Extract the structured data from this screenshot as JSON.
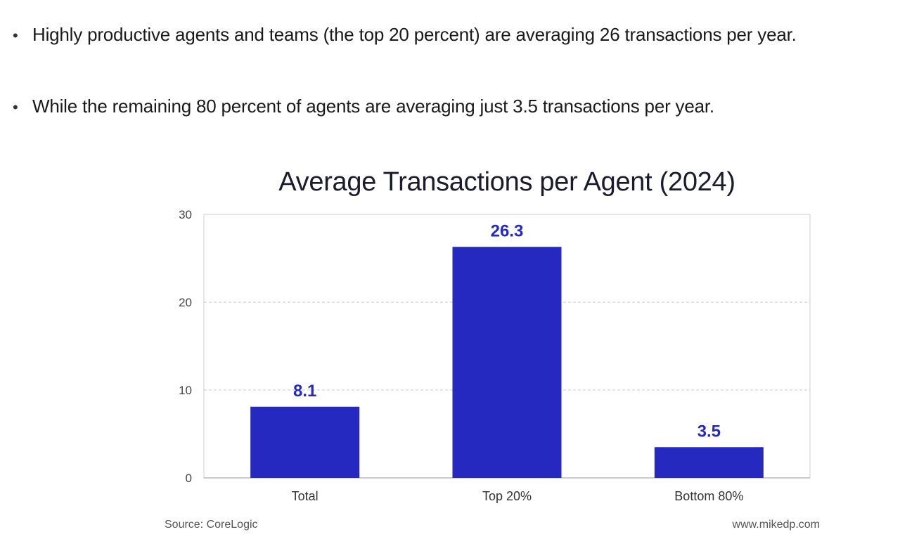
{
  "bullets": [
    "Highly productive agents and teams (the top 20 percent) are averaging 26 transactions per year.",
    "While the remaining 80 percent of agents are averaging just 3.5 transactions per year."
  ],
  "bullet_glyph": "•",
  "chart_data": {
    "type": "bar",
    "title": "Average Transactions per Agent (2024)",
    "categories": [
      "Total",
      "Top 20%",
      "Bottom 80%"
    ],
    "values": [
      8.1,
      26.3,
      3.5
    ],
    "data_labels": [
      "8.1",
      "26.3",
      "3.5"
    ],
    "ylim": [
      0,
      30
    ],
    "yticks": [
      0,
      10,
      20,
      30
    ],
    "xlabel": "",
    "ylabel": "",
    "grid": "dashed horizontal",
    "bar_color": "#2629c0",
    "label_color": "#2629c0"
  },
  "footer": {
    "source": "Source: CoreLogic",
    "website": "www.mikedp.com"
  }
}
